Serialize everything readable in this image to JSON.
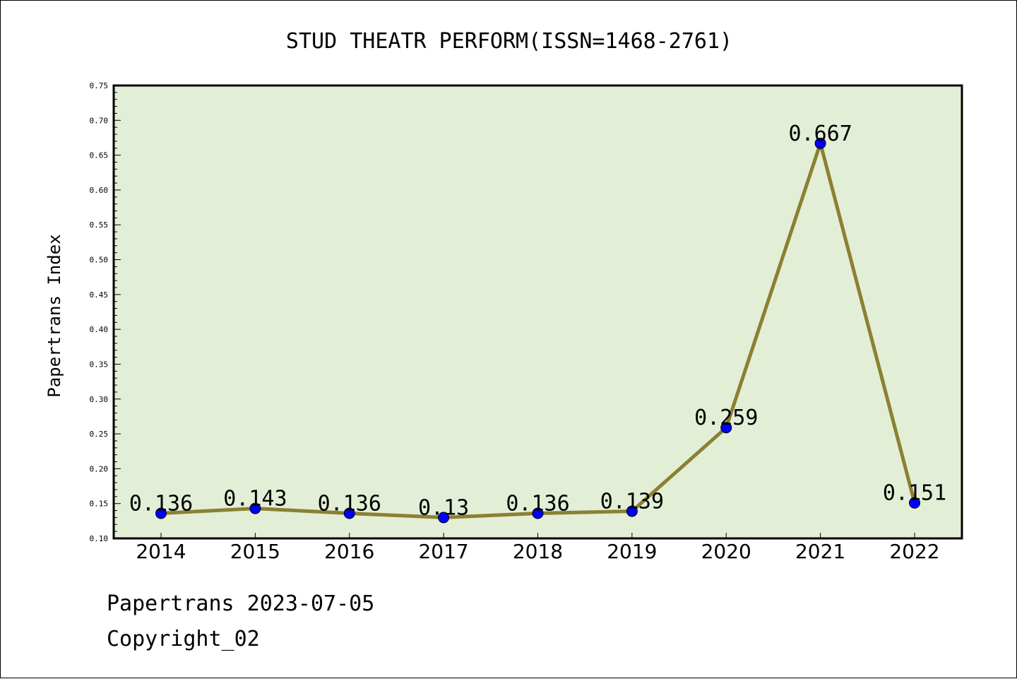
{
  "chart_data": {
    "type": "line",
    "title": "STUD THEATR PERFORM(ISSN=1468-2761)",
    "xlabel": "",
    "ylabel": "Papertrans Index",
    "categories": [
      "2014",
      "2015",
      "2016",
      "2017",
      "2018",
      "2019",
      "2020",
      "2021",
      "2022"
    ],
    "values": [
      0.136,
      0.143,
      0.136,
      0.13,
      0.136,
      0.139,
      0.259,
      0.667,
      0.151
    ],
    "data_labels": [
      "0.136",
      "0.143",
      "0.136",
      "0.13",
      "0.136",
      "0.139",
      "0.259",
      "0.667",
      "0.151"
    ],
    "ylim": [
      0.1,
      0.75
    ],
    "yticks": [
      "0.10",
      "0.15",
      "0.20",
      "0.25",
      "0.30",
      "0.35",
      "0.40",
      "0.45",
      "0.50",
      "0.55",
      "0.60",
      "0.65",
      "0.70",
      "0.75"
    ],
    "grid": false,
    "colors": {
      "plot_background": "#e2efd6",
      "line": "#8b8032",
      "marker": "#0000ff"
    }
  },
  "footer": {
    "line1": "Papertrans 2023-07-05",
    "line2": "Copyright_02"
  }
}
